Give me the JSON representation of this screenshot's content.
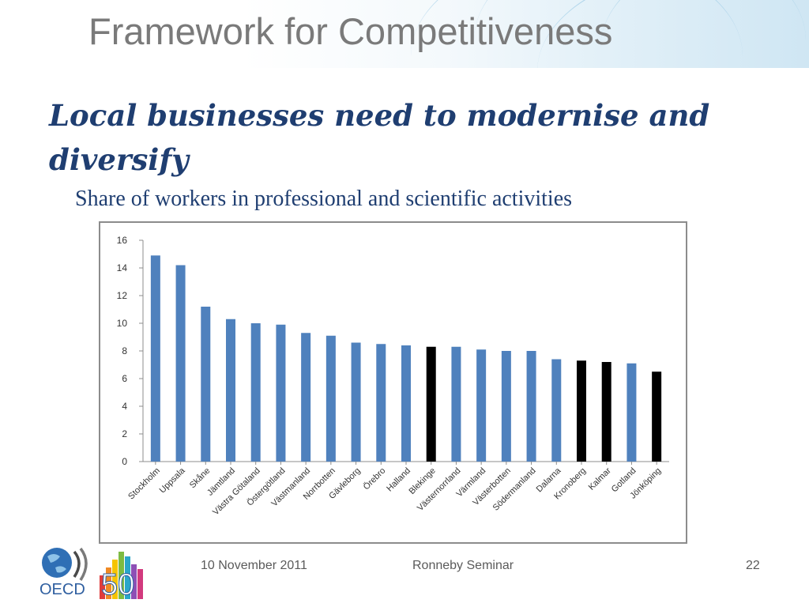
{
  "slide": {
    "title": "Framework for Competitiveness",
    "subtitle": "Local businesses need to modernise and diversify",
    "chart_caption": "Share of workers in professional and scientific activities"
  },
  "footer": {
    "date": "10 November 2011",
    "event": "Ronneby Seminar",
    "page_number": "22",
    "logo_text": "OECD",
    "logo_number": "50"
  },
  "colors": {
    "title_gray": "#7a7a7a",
    "subtitle_navy": "#1f3e71",
    "bar_blue": "#4f81bd",
    "bar_highlight": "#000000"
  },
  "chart_data": {
    "type": "bar",
    "title": "",
    "xlabel": "",
    "ylabel": "",
    "ylim": [
      0,
      16
    ],
    "yticks": [
      0,
      2,
      4,
      6,
      8,
      10,
      12,
      14,
      16
    ],
    "grid": false,
    "legend": "none",
    "categories": [
      "Stockholm",
      "Uppsala",
      "Skåne",
      "Jämtland",
      "Västra Götaland",
      "Östergötland",
      "Västmanland",
      "Norrbotten",
      "Gävleborg",
      "Örebro",
      "Halland",
      "Blekinge",
      "Västernorrland",
      "Värmland",
      "Västerbotten",
      "Södermanland",
      "Dalarna",
      "Kronoberg",
      "Kalmar",
      "Gotland",
      "Jönköping"
    ],
    "values": [
      14.9,
      14.2,
      11.2,
      10.3,
      10.0,
      9.9,
      9.3,
      9.1,
      8.6,
      8.5,
      8.4,
      8.3,
      8.3,
      8.1,
      8.0,
      8.0,
      7.4,
      7.3,
      7.2,
      7.1,
      6.5
    ],
    "highlighted": [
      false,
      false,
      false,
      false,
      false,
      false,
      false,
      false,
      false,
      false,
      false,
      true,
      false,
      false,
      false,
      false,
      false,
      true,
      true,
      false,
      true
    ]
  }
}
